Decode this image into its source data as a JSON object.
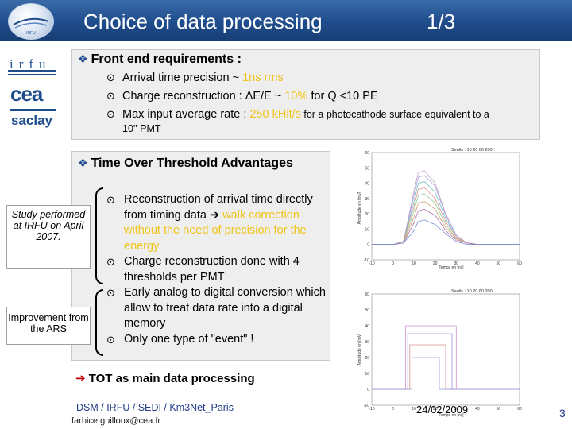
{
  "header": {
    "title": "Choice of data processing",
    "page_count": "1/3",
    "logo_text": "IRFU"
  },
  "logos": {
    "irfu": "irfu",
    "cea": "cea",
    "saclay": "saclay"
  },
  "front_end": {
    "heading": "Front end requirements :",
    "items": [
      {
        "pre": "Arrival time precision ~ ",
        "hl": "1ns rms",
        "post": ""
      },
      {
        "pre": "Charge reconstruction : ΔE/E ~ ",
        "hl": "10%",
        "post": " for Q <10 PE"
      },
      {
        "pre": "Max input average rate : ",
        "hl": "250 kHit/s",
        "post": " for a photocathode surface equivalent to a"
      }
    ],
    "item3_line2": "10'' PMT"
  },
  "tot": {
    "heading": "Time Over Threshold Advantages",
    "item1_pre": "Reconstruction of arrival time directly from timing data ",
    "item1_arrow": "➔",
    "item1_hl": " walk correction without the need of precision for the energy",
    "item2": "Charge reconstruction done with 4 thresholds per PMT",
    "item3": "Early analog to digital conversion which allow to treat data rate into a digital memory",
    "item4": "Only one type of \"event\" !",
    "main": "TOT as main data processing",
    "main_arrow": "➔"
  },
  "side_notes": {
    "study": "Study performed at IRFU on April 2007.",
    "improvement": "Improvement from the ARS"
  },
  "footer": {
    "affiliation": "DSM / IRFU / SEDI / Km3Net_Paris",
    "email": "farbice.guilloux@cea.fr",
    "date": "24/02/2009",
    "page_number": "3"
  },
  "chart_data": [
    {
      "type": "line",
      "title": "Seuils : 10  20  60  200",
      "xlabel": "Temps en [ns]",
      "ylabel": "Amplitude en [mV]",
      "xlim": [
        -10,
        60
      ],
      "ylim": [
        -10,
        60
      ],
      "xticks": [
        "-10",
        "0",
        "10",
        "20",
        "30",
        "40",
        "50",
        "60"
      ],
      "yticks": [
        "60",
        "50",
        "40",
        "30",
        "20",
        "10",
        "0",
        "-10"
      ],
      "x": [
        -10,
        0,
        5,
        10,
        12,
        15,
        20,
        25,
        30,
        35,
        40,
        50,
        60
      ],
      "series": [
        {
          "color": "#c8a0c8",
          "values": [
            0,
            0,
            2,
            35,
            47,
            48,
            40,
            20,
            6,
            1,
            0,
            0,
            0
          ]
        },
        {
          "color": "#a0a0e0",
          "values": [
            0,
            0,
            2,
            32,
            44,
            45,
            38,
            19,
            6,
            1,
            0,
            0,
            0
          ]
        },
        {
          "color": "#70c0c0",
          "values": [
            0,
            0,
            2,
            28,
            40,
            41,
            34,
            17,
            5,
            1,
            0,
            0,
            0
          ]
        },
        {
          "color": "#e09090",
          "values": [
            0,
            0,
            2,
            25,
            36,
            37,
            30,
            15,
            5,
            1,
            0,
            0,
            0
          ]
        },
        {
          "color": "#90d090",
          "values": [
            0,
            0,
            1,
            22,
            32,
            33,
            27,
            13,
            4,
            1,
            0,
            0,
            0
          ]
        },
        {
          "color": "#d0a070",
          "values": [
            0,
            0,
            1,
            18,
            27,
            28,
            23,
            11,
            4,
            1,
            0,
            0,
            0
          ]
        },
        {
          "color": "#b070b0",
          "values": [
            0,
            0,
            1,
            14,
            22,
            23,
            19,
            9,
            3,
            1,
            0,
            0,
            0
          ]
        },
        {
          "color": "#7090d0",
          "values": [
            0,
            0,
            1,
            9,
            15,
            16,
            13,
            7,
            2,
            0,
            0,
            0,
            0
          ]
        }
      ]
    },
    {
      "type": "line",
      "title": "Seuils : 10  20  60  200",
      "xlabel": "Temps en [ns]",
      "ylabel": "Amplitude en [mV]",
      "xlim": [
        -10,
        60
      ],
      "ylim": [
        -10,
        60
      ],
      "xticks": [
        "-10",
        "0",
        "10",
        "20",
        "30",
        "40",
        "50",
        "60"
      ],
      "yticks": [
        "60",
        "50",
        "40",
        "30",
        "20",
        "10",
        "0",
        "-10"
      ],
      "series": [
        {
          "color": "#d090d0",
          "start": 6,
          "end": 30,
          "level": 40
        },
        {
          "color": "#a090e0",
          "start": 7,
          "end": 28,
          "level": 35
        },
        {
          "color": "#e09090",
          "start": 8,
          "end": 25,
          "level": 28
        },
        {
          "color": "#90a0e0",
          "start": 9,
          "end": 22,
          "level": 20
        }
      ]
    }
  ]
}
